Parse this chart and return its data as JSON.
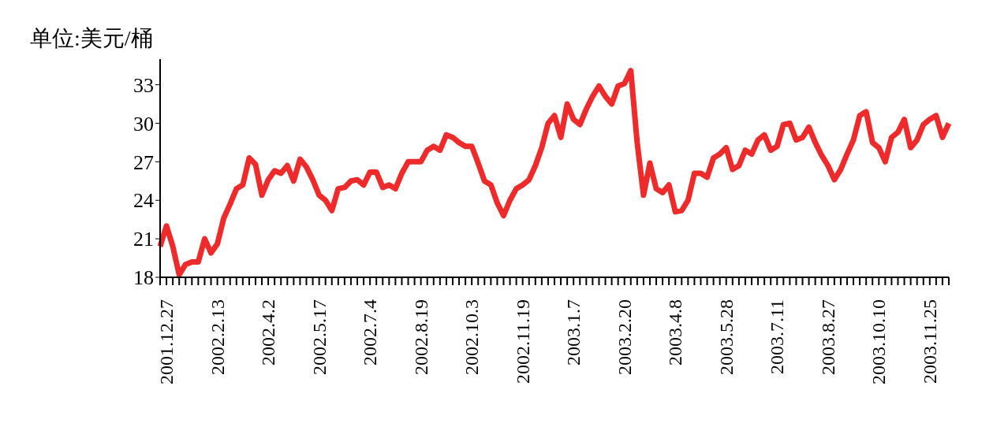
{
  "chart_data": {
    "type": "line",
    "ylabel": "单位:美元/桶",
    "categories": [
      null,
      "2001.12.27",
      null,
      null,
      null,
      null,
      null,
      null,
      null,
      "2002.2.13",
      null,
      null,
      null,
      null,
      null,
      null,
      null,
      "2002.4.2",
      null,
      null,
      null,
      null,
      null,
      null,
      null,
      "2002.5.17",
      null,
      null,
      null,
      null,
      null,
      null,
      null,
      "2002.7.4",
      null,
      null,
      null,
      null,
      null,
      null,
      null,
      "2002.8.19",
      null,
      null,
      null,
      null,
      null,
      null,
      null,
      "2002.10.3",
      null,
      null,
      null,
      null,
      null,
      null,
      null,
      "2002.11.19",
      null,
      null,
      null,
      null,
      null,
      null,
      null,
      "2003.1.7",
      null,
      null,
      null,
      null,
      null,
      null,
      null,
      "2003.2.20",
      null,
      null,
      null,
      null,
      null,
      null,
      null,
      "2003.4.8",
      null,
      null,
      null,
      null,
      null,
      null,
      null,
      "2003.5.28",
      null,
      null,
      null,
      null,
      null,
      null,
      null,
      "2003.7.11",
      null,
      null,
      null,
      null,
      null,
      null,
      null,
      "2003.8.27",
      null,
      null,
      null,
      null,
      null,
      null,
      null,
      "2003.10.10",
      null,
      null,
      null,
      null,
      null,
      null,
      null,
      "2003.11.25",
      null,
      null,
      null
    ],
    "series": [
      {
        "color": "#ee2a2a",
        "values": [
          20.4,
          22.0,
          20.4,
          18.2,
          19.0,
          19.2,
          19.2,
          21.0,
          19.9,
          20.6,
          22.6,
          23.7,
          24.9,
          25.2,
          27.3,
          26.8,
          24.4,
          25.6,
          26.3,
          26.1,
          26.7,
          25.5,
          27.2,
          26.6,
          25.6,
          24.4,
          24.0,
          23.2,
          24.9,
          25.0,
          25.5,
          25.6,
          25.2,
          26.2,
          26.2,
          25.0,
          25.2,
          24.9,
          26.1,
          27.0,
          27.0,
          27.0,
          27.9,
          28.2,
          27.9,
          29.1,
          28.9,
          28.5,
          28.2,
          28.2,
          26.9,
          25.5,
          25.2,
          23.8,
          22.8,
          24.0,
          24.9,
          25.2,
          25.6,
          26.7,
          28.1,
          30.0,
          30.6,
          28.9,
          31.5,
          30.3,
          29.9,
          31.1,
          32.1,
          32.9,
          32.1,
          31.5,
          32.9,
          33.1,
          34.1,
          28.5,
          24.4,
          26.9,
          24.9,
          24.6,
          25.2,
          23.1,
          23.2,
          24.0,
          26.1,
          26.1,
          25.8,
          27.3,
          27.6,
          28.1,
          26.4,
          26.7,
          27.9,
          27.6,
          28.7,
          29.1,
          27.9,
          28.2,
          29.9,
          30.0,
          28.7,
          28.9,
          29.7,
          28.5,
          27.5,
          26.7,
          25.6,
          26.4,
          27.6,
          28.7,
          30.6,
          30.9,
          28.5,
          28.1,
          27.0,
          28.9,
          29.3,
          30.3,
          28.1,
          28.7,
          29.9,
          30.3,
          30.6,
          28.9,
          30.0
        ]
      }
    ],
    "ylim": [
      18,
      35
    ],
    "yticks": [
      18,
      21,
      24,
      27,
      30,
      33
    ],
    "marker": "none",
    "line_style": "solid"
  }
}
